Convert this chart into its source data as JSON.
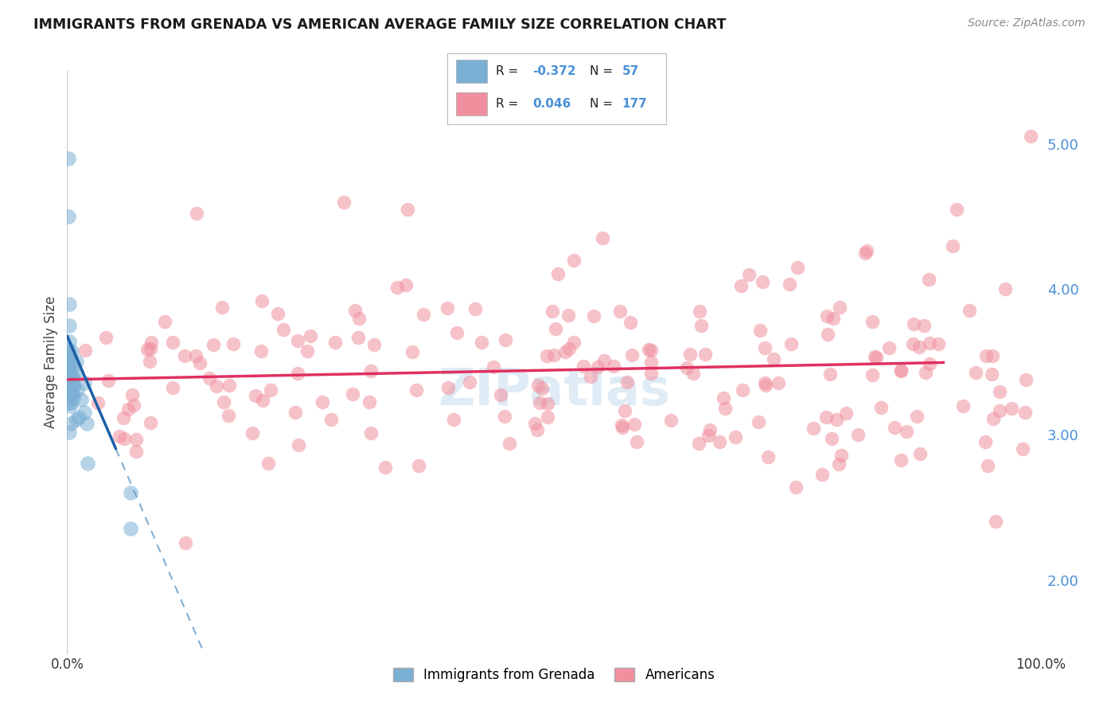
{
  "title": "IMMIGRANTS FROM GRENADA VS AMERICAN AVERAGE FAMILY SIZE CORRELATION CHART",
  "source_text": "Source: ZipAtlas.com",
  "ylabel": "Average Family Size",
  "yticks": [
    2.0,
    3.0,
    4.0,
    5.0
  ],
  "xlim": [
    0.0,
    100.0
  ],
  "ylim": [
    1.5,
    5.5
  ],
  "watermark": "ZIPatlas",
  "legend_blue_r": "-0.372",
  "legend_blue_n": "57",
  "legend_pink_r": "0.046",
  "legend_pink_n": "177",
  "blue_color": "#7bafd4",
  "pink_color": "#f0909e",
  "trend_blue_solid_color": "#1a5fa8",
  "trend_blue_dash_color": "#6aa0cc",
  "trend_pink_color": "#e03060",
  "background_color": "#ffffff",
  "grid_color": "#cccccc",
  "tick_label_color": "#4a90d9",
  "title_color": "#1a1a1a",
  "source_color": "#888888"
}
